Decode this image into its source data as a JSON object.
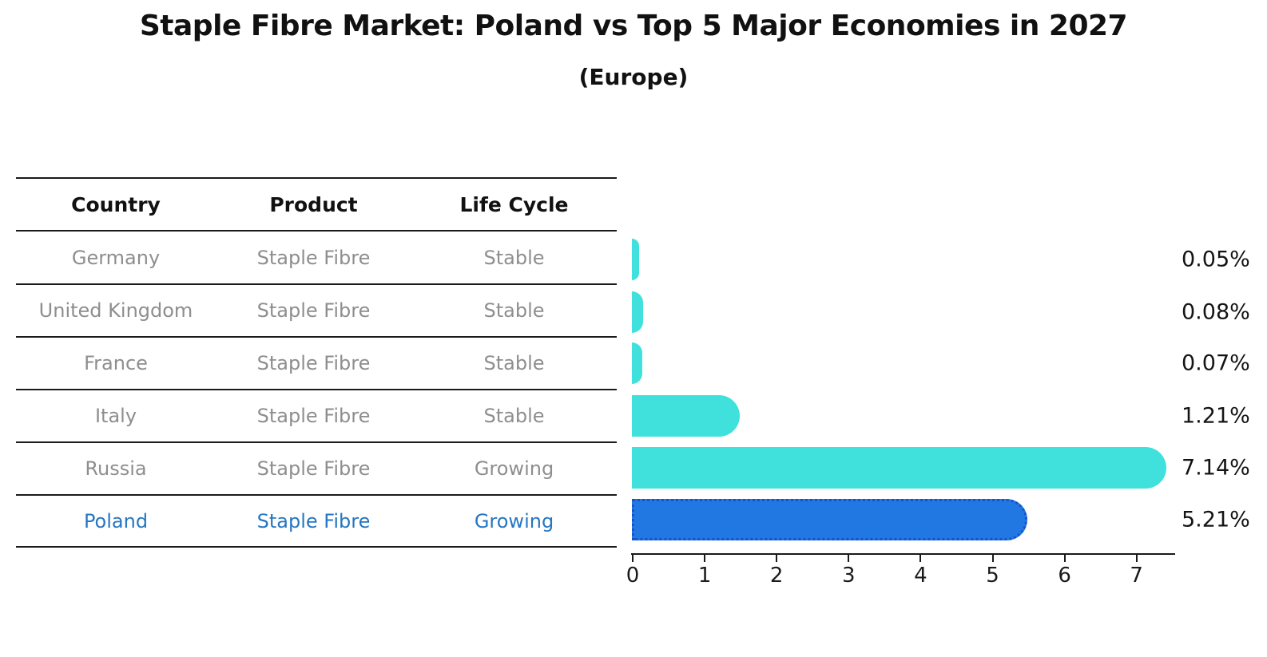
{
  "title": "Staple Fibre Market: Poland vs Top 5 Major Economies in 2027",
  "subtitle": "(Europe)",
  "table": {
    "headers": [
      "Country",
      "Product",
      "Life Cycle"
    ],
    "rows": [
      {
        "country": "Germany",
        "product": "Staple Fibre",
        "life_cycle": "Stable",
        "highlight": false
      },
      {
        "country": "United Kingdom",
        "product": "Staple Fibre",
        "life_cycle": "Stable",
        "highlight": false
      },
      {
        "country": "France",
        "product": "Staple Fibre",
        "life_cycle": "Stable",
        "highlight": false
      },
      {
        "country": "Italy",
        "product": "Staple Fibre",
        "life_cycle": "Stable",
        "highlight": false
      },
      {
        "country": "Russia",
        "product": "Staple Fibre",
        "life_cycle": "Growing",
        "highlight": false
      },
      {
        "country": "Poland",
        "product": "Staple Fibre",
        "life_cycle": "Growing",
        "highlight": true
      }
    ]
  },
  "chart_data": {
    "type": "bar",
    "orientation": "horizontal",
    "title": "Staple Fibre Market: Poland vs Top 5 Major Economies in 2027",
    "subtitle": "(Europe)",
    "categories": [
      "Germany",
      "United Kingdom",
      "France",
      "Italy",
      "Russia",
      "Poland"
    ],
    "values": [
      0.05,
      0.08,
      0.07,
      1.21,
      7.14,
      5.21
    ],
    "value_labels": [
      "0.05%",
      "0.08%",
      "0.07%",
      "1.21%",
      "7.14%",
      "5.21%"
    ],
    "highlighted_category": "Poland",
    "xlim": [
      0,
      7.5
    ],
    "xticks": [
      "0",
      "1",
      "2",
      "3",
      "4",
      "5",
      "6",
      "7"
    ],
    "grid": false,
    "legend": false
  },
  "colors": {
    "bar": "#40e1dc",
    "highlight_bar": "#2278e3",
    "highlight_bar_border": "#1553cd",
    "highlight_text": "#2577c2",
    "muted_text": "#8e8e8e",
    "strong_text": "#111111",
    "line": "#1a1a1a"
  }
}
